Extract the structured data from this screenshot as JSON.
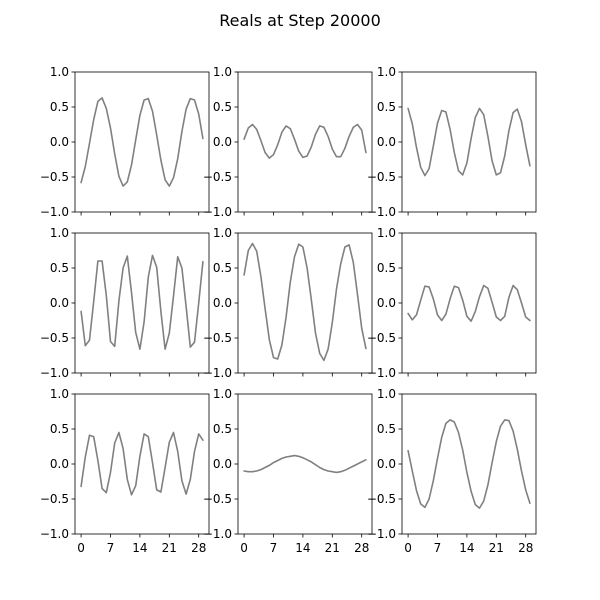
{
  "figure": {
    "title": "Reals at Step 20000"
  },
  "style": {
    "line_color": "#808080",
    "axes_color": "#000000",
    "background": "#ffffff"
  },
  "chart_data": [
    {
      "type": "line",
      "grid_position": "row-1-col-1",
      "x": [
        0,
        1,
        2,
        3,
        4,
        5,
        6,
        7,
        8,
        9,
        10,
        11,
        12,
        13,
        14,
        15,
        16,
        17,
        18,
        19,
        20,
        21,
        22,
        23,
        24,
        25,
        26,
        27,
        28,
        29
      ],
      "series": [
        {
          "values": [
            -0.58,
            -0.35,
            -0.02,
            0.32,
            0.58,
            0.63,
            0.48,
            0.2,
            -0.17,
            -0.49,
            -0.63,
            -0.57,
            -0.33,
            0.03,
            0.38,
            0.6,
            0.62,
            0.44,
            0.1,
            -0.26,
            -0.54,
            -0.63,
            -0.51,
            -0.24,
            0.15,
            0.47,
            0.62,
            0.6,
            0.4,
            0.05
          ]
        }
      ],
      "xlim": [
        -1.45,
        30.45
      ],
      "ylim": [
        -1,
        1
      ],
      "xticks": [
        0,
        7,
        14,
        21,
        28
      ],
      "yticks": [
        -1.0,
        -0.5,
        0.0,
        0.5,
        1.0
      ],
      "xtick_labels": [
        "0",
        "7",
        "14",
        "21",
        "28"
      ],
      "ytick_labels": [
        "−1.0",
        "−0.5",
        "0.0",
        "0.5",
        "1.0"
      ],
      "show_xtick_labels": false,
      "show_ytick_labels": true,
      "grid": false
    },
    {
      "type": "line",
      "grid_position": "row-1-col-2",
      "x": [
        0,
        1,
        2,
        3,
        4,
        5,
        6,
        7,
        8,
        9,
        10,
        11,
        12,
        13,
        14,
        15,
        16,
        17,
        18,
        19,
        20,
        21,
        22,
        23,
        24,
        25,
        26,
        27,
        28,
        29
      ],
      "series": [
        {
          "values": [
            0.04,
            0.2,
            0.25,
            0.18,
            0.02,
            -0.15,
            -0.23,
            -0.18,
            -0.04,
            0.14,
            0.23,
            0.19,
            0.04,
            -0.13,
            -0.22,
            -0.2,
            -0.07,
            0.11,
            0.23,
            0.21,
            0.08,
            -0.1,
            -0.21,
            -0.21,
            -0.09,
            0.08,
            0.21,
            0.25,
            0.17,
            -0.15
          ]
        }
      ],
      "xlim": [
        -1.45,
        30.45
      ],
      "ylim": [
        -1,
        1
      ],
      "xticks": [
        0,
        7,
        14,
        21,
        28
      ],
      "yticks": [
        -1.0,
        -0.5,
        0.0,
        0.5,
        1.0
      ],
      "xtick_labels": [
        "0",
        "7",
        "14",
        "21",
        "28"
      ],
      "ytick_labels": [
        "−1.0",
        "−0.5",
        "0.0",
        "0.5",
        "1.0"
      ],
      "show_xtick_labels": false,
      "show_ytick_labels": true,
      "grid": false
    },
    {
      "type": "line",
      "grid_position": "row-1-col-3",
      "x": [
        0,
        1,
        2,
        3,
        4,
        5,
        6,
        7,
        8,
        9,
        10,
        11,
        12,
        13,
        14,
        15,
        16,
        17,
        18,
        19,
        20,
        21,
        22,
        23,
        24,
        25,
        26,
        27,
        28,
        29
      ],
      "series": [
        {
          "values": [
            0.48,
            0.26,
            -0.08,
            -0.36,
            -0.48,
            -0.38,
            -0.06,
            0.27,
            0.45,
            0.43,
            0.18,
            -0.15,
            -0.41,
            -0.47,
            -0.3,
            0.05,
            0.35,
            0.48,
            0.39,
            0.08,
            -0.27,
            -0.47,
            -0.44,
            -0.2,
            0.16,
            0.42,
            0.47,
            0.29,
            -0.04,
            -0.34
          ]
        }
      ],
      "xlim": [
        -1.45,
        30.45
      ],
      "ylim": [
        -1,
        1
      ],
      "xticks": [
        0,
        7,
        14,
        21,
        28
      ],
      "yticks": [
        -1.0,
        -0.5,
        0.0,
        0.5,
        1.0
      ],
      "xtick_labels": [
        "0",
        "7",
        "14",
        "21",
        "28"
      ],
      "ytick_labels": [
        "−1.0",
        "−0.5",
        "0.0",
        "0.5",
        "1.0"
      ],
      "show_xtick_labels": false,
      "show_ytick_labels": true,
      "grid": false
    },
    {
      "type": "line",
      "grid_position": "row-2-col-1",
      "x": [
        0,
        1,
        2,
        3,
        4,
        5,
        6,
        7,
        8,
        9,
        10,
        11,
        12,
        13,
        14,
        15,
        16,
        17,
        18,
        19,
        20,
        21,
        22,
        23,
        24,
        25,
        26,
        27,
        28,
        29
      ],
      "series": [
        {
          "values": [
            -0.12,
            -0.61,
            -0.53,
            0.02,
            0.6,
            0.6,
            0.11,
            -0.55,
            -0.62,
            0.03,
            0.5,
            0.67,
            0.15,
            -0.42,
            -0.66,
            -0.27,
            0.37,
            0.68,
            0.51,
            -0.12,
            -0.66,
            -0.43,
            0.1,
            0.66,
            0.5,
            -0.05,
            -0.63,
            -0.56,
            0.0,
            0.59
          ]
        }
      ],
      "xlim": [
        -1.45,
        30.45
      ],
      "ylim": [
        -1,
        1
      ],
      "xticks": [
        0,
        7,
        14,
        21,
        28
      ],
      "yticks": [
        -1.0,
        -0.5,
        0.0,
        0.5,
        1.0
      ],
      "xtick_labels": [
        "0",
        "7",
        "14",
        "21",
        "28"
      ],
      "ytick_labels": [
        "−1.0",
        "−0.5",
        "0.0",
        "0.5",
        "1.0"
      ],
      "show_xtick_labels": false,
      "show_ytick_labels": true,
      "grid": false
    },
    {
      "type": "line",
      "grid_position": "row-2-col-2",
      "x": [
        0,
        1,
        2,
        3,
        4,
        5,
        6,
        7,
        8,
        9,
        10,
        11,
        12,
        13,
        14,
        15,
        16,
        17,
        18,
        19,
        20,
        21,
        22,
        23,
        24,
        25,
        26,
        27,
        28,
        29
      ],
      "series": [
        {
          "values": [
            0.4,
            0.75,
            0.85,
            0.74,
            0.38,
            -0.08,
            -0.52,
            -0.78,
            -0.8,
            -0.6,
            -0.2,
            0.3,
            0.66,
            0.84,
            0.8,
            0.5,
            0.05,
            -0.43,
            -0.72,
            -0.82,
            -0.66,
            -0.28,
            0.2,
            0.56,
            0.8,
            0.83,
            0.58,
            0.12,
            -0.36,
            -0.65
          ]
        }
      ],
      "xlim": [
        -1.45,
        30.45
      ],
      "ylim": [
        -1,
        1
      ],
      "xticks": [
        0,
        7,
        14,
        21,
        28
      ],
      "yticks": [
        -1.0,
        -0.5,
        0.0,
        0.5,
        1.0
      ],
      "xtick_labels": [
        "0",
        "7",
        "14",
        "21",
        "28"
      ],
      "ytick_labels": [
        "−1.0",
        "−0.5",
        "0.0",
        "0.5",
        "1.0"
      ],
      "show_xtick_labels": false,
      "show_ytick_labels": true,
      "grid": false
    },
    {
      "type": "line",
      "grid_position": "row-2-col-3",
      "x": [
        0,
        1,
        2,
        3,
        4,
        5,
        6,
        7,
        8,
        9,
        10,
        11,
        12,
        13,
        14,
        15,
        16,
        17,
        18,
        19,
        20,
        21,
        22,
        23,
        24,
        25,
        26,
        27,
        28,
        29
      ],
      "series": [
        {
          "values": [
            -0.15,
            -0.24,
            -0.17,
            0.04,
            0.24,
            0.23,
            0.06,
            -0.17,
            -0.25,
            -0.16,
            0.06,
            0.24,
            0.22,
            0.04,
            -0.19,
            -0.26,
            -0.12,
            0.09,
            0.25,
            0.21,
            0.01,
            -0.2,
            -0.25,
            -0.19,
            0.08,
            0.25,
            0.19,
            0.0,
            -0.2,
            -0.25
          ]
        }
      ],
      "xlim": [
        -1.45,
        30.45
      ],
      "ylim": [
        -1,
        1
      ],
      "xticks": [
        0,
        7,
        14,
        21,
        28
      ],
      "yticks": [
        -1.0,
        -0.5,
        0.0,
        0.5,
        1.0
      ],
      "xtick_labels": [
        "0",
        "7",
        "14",
        "21",
        "28"
      ],
      "ytick_labels": [
        "−1.0",
        "−0.5",
        "0.0",
        "0.5",
        "1.0"
      ],
      "show_xtick_labels": false,
      "show_ytick_labels": true,
      "grid": false
    },
    {
      "type": "line",
      "grid_position": "row-3-col-1",
      "x": [
        0,
        1,
        2,
        3,
        4,
        5,
        6,
        7,
        8,
        9,
        10,
        11,
        12,
        13,
        14,
        15,
        16,
        17,
        18,
        19,
        20,
        21,
        22,
        23,
        24,
        25,
        26,
        27,
        28,
        29
      ],
      "series": [
        {
          "values": [
            -0.32,
            0.1,
            0.41,
            0.39,
            0.05,
            -0.35,
            -0.41,
            -0.12,
            0.3,
            0.45,
            0.22,
            -0.22,
            -0.44,
            -0.31,
            0.11,
            0.43,
            0.39,
            0.02,
            -0.37,
            -0.4,
            -0.05,
            0.31,
            0.45,
            0.18,
            -0.24,
            -0.43,
            -0.22,
            0.18,
            0.43,
            0.34
          ]
        }
      ],
      "xlim": [
        -1.45,
        30.45
      ],
      "ylim": [
        -1,
        1
      ],
      "xticks": [
        0,
        7,
        14,
        21,
        28
      ],
      "yticks": [
        -1.0,
        -0.5,
        0.0,
        0.5,
        1.0
      ],
      "xtick_labels": [
        "0",
        "7",
        "14",
        "21",
        "28"
      ],
      "ytick_labels": [
        "−1.0",
        "−0.5",
        "0.0",
        "0.5",
        "1.0"
      ],
      "show_xtick_labels": true,
      "show_ytick_labels": true,
      "grid": false
    },
    {
      "type": "line",
      "grid_position": "row-3-col-2",
      "x": [
        0,
        1,
        2,
        3,
        4,
        5,
        6,
        7,
        8,
        9,
        10,
        11,
        12,
        13,
        14,
        15,
        16,
        17,
        18,
        19,
        20,
        21,
        22,
        23,
        24,
        25,
        26,
        27,
        28,
        29
      ],
      "series": [
        {
          "values": [
            -0.1,
            -0.11,
            -0.11,
            -0.1,
            -0.08,
            -0.05,
            -0.02,
            0.02,
            0.05,
            0.08,
            0.1,
            0.11,
            0.12,
            0.11,
            0.09,
            0.06,
            0.03,
            -0.01,
            -0.05,
            -0.08,
            -0.1,
            -0.11,
            -0.12,
            -0.11,
            -0.09,
            -0.06,
            -0.03,
            0.0,
            0.03,
            0.06
          ]
        }
      ],
      "xlim": [
        -1.45,
        30.45
      ],
      "ylim": [
        -1,
        1
      ],
      "xticks": [
        0,
        7,
        14,
        21,
        28
      ],
      "yticks": [
        -1.0,
        -0.5,
        0.0,
        0.5,
        1.0
      ],
      "xtick_labels": [
        "0",
        "7",
        "14",
        "21",
        "28"
      ],
      "ytick_labels": [
        "−1.0",
        "−0.5",
        "0.0",
        "0.5",
        "1.0"
      ],
      "show_xtick_labels": true,
      "show_ytick_labels": true,
      "grid": false
    },
    {
      "type": "line",
      "grid_position": "row-3-col-3",
      "x": [
        0,
        1,
        2,
        3,
        4,
        5,
        6,
        7,
        8,
        9,
        10,
        11,
        12,
        13,
        14,
        15,
        16,
        17,
        18,
        19,
        20,
        21,
        22,
        23,
        24,
        25,
        26,
        27,
        28,
        29
      ],
      "series": [
        {
          "values": [
            0.19,
            -0.1,
            -0.38,
            -0.57,
            -0.62,
            -0.5,
            -0.24,
            0.08,
            0.38,
            0.58,
            0.63,
            0.6,
            0.45,
            0.2,
            -0.12,
            -0.39,
            -0.58,
            -0.63,
            -0.53,
            -0.3,
            0.02,
            0.32,
            0.54,
            0.63,
            0.62,
            0.47,
            0.21,
            -0.1,
            -0.37,
            -0.56
          ]
        }
      ],
      "xlim": [
        -1.45,
        30.45
      ],
      "ylim": [
        -1,
        1
      ],
      "xticks": [
        0,
        7,
        14,
        21,
        28
      ],
      "yticks": [
        -1.0,
        -0.5,
        0.0,
        0.5,
        1.0
      ],
      "xtick_labels": [
        "0",
        "7",
        "14",
        "21",
        "28"
      ],
      "ytick_labels": [
        "−1.0",
        "−0.5",
        "0.0",
        "0.5",
        "1.0"
      ],
      "show_xtick_labels": true,
      "show_ytick_labels": true,
      "grid": false
    }
  ]
}
